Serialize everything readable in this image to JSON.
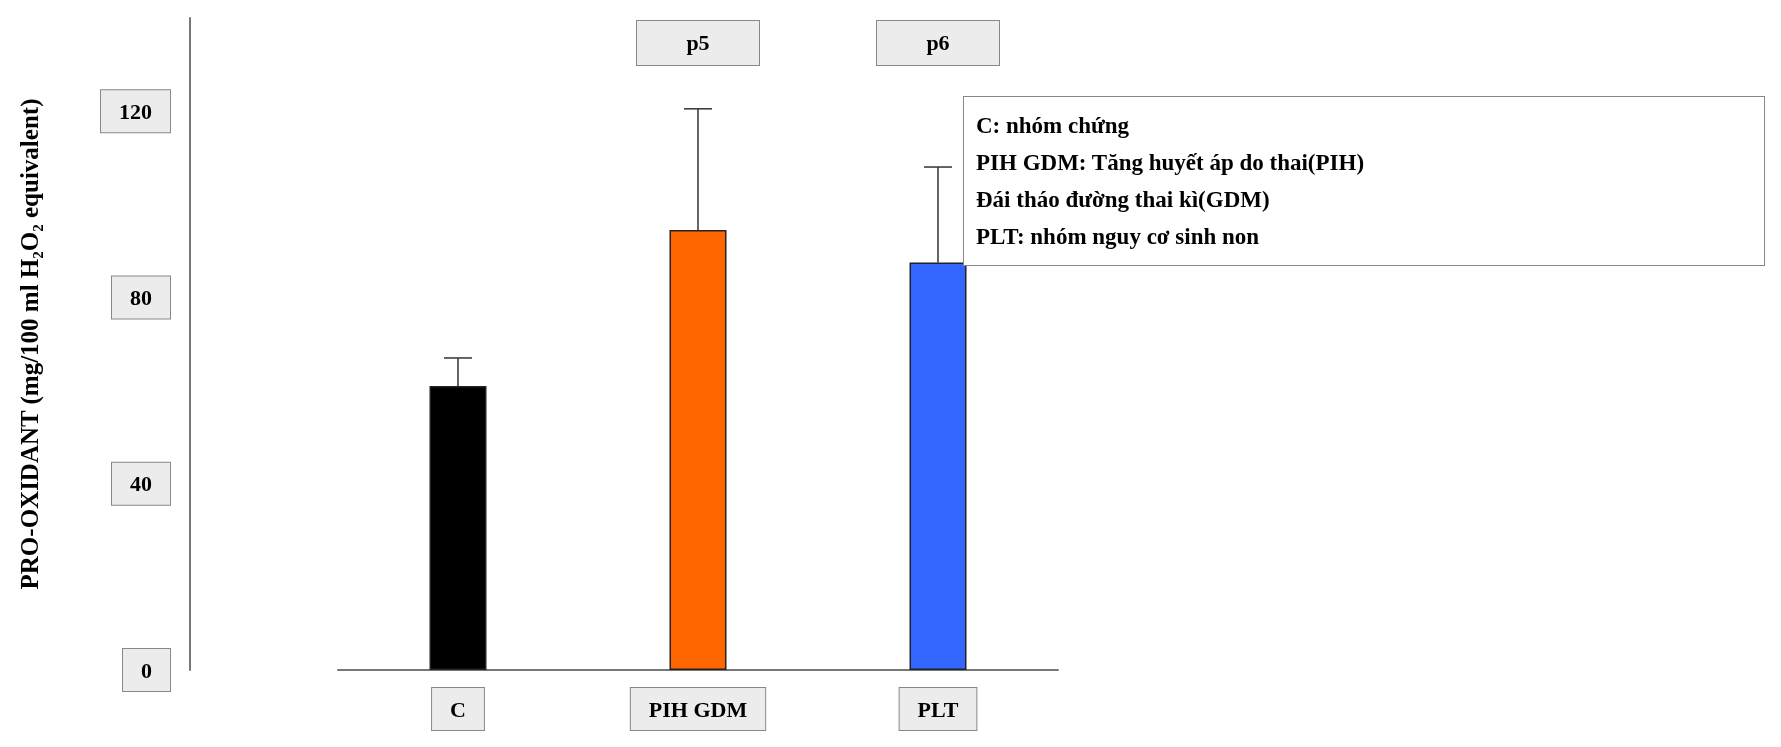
{
  "chart_data": {
    "type": "bar",
    "ylabel": "PRO-OXIDANT (mg/100 ml H₂O₂ equivalent)",
    "categories": [
      "C",
      "PIH GDM",
      "PLT"
    ],
    "values": [
      61,
      94.5,
      87.5
    ],
    "colors": [
      "#000000",
      "#ff6600",
      "#3366ff"
    ],
    "errors": [
      [
        61,
        67
      ],
      [
        94.5,
        120.5
      ],
      [
        87.5,
        108
      ]
    ],
    "ylim": [
      0,
      140
    ],
    "yticks": [
      0,
      40,
      80,
      120
    ],
    "grid": false,
    "annotations": [
      "p5",
      "p6",
      "C: nhóm chứng\nPIH GDM: Tăng huyết áp do thai(PIH)\nĐái tháo đường thai kì(GDM)\nPLT: nhóm nguy cơ sinh non"
    ]
  }
}
